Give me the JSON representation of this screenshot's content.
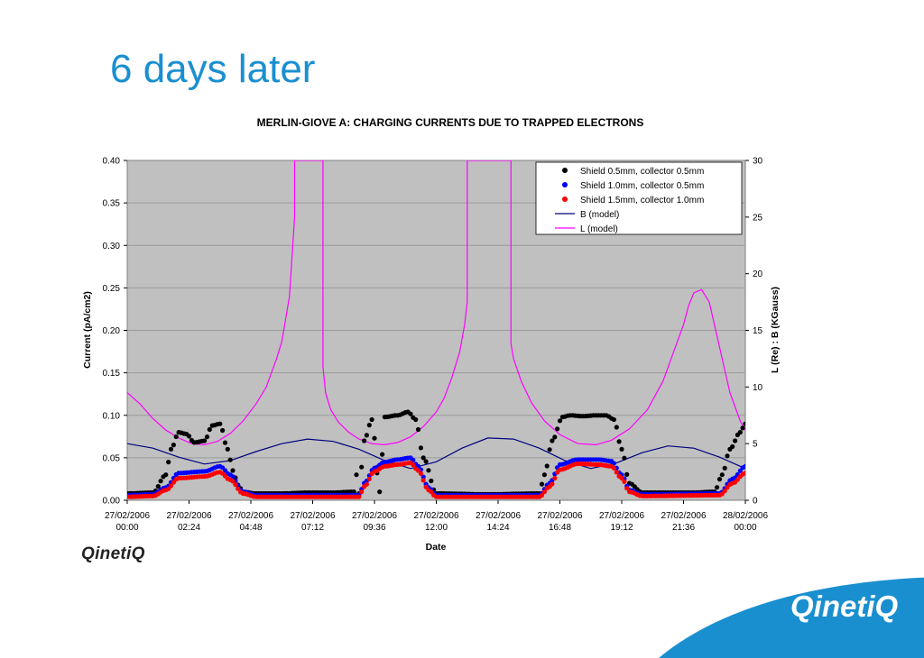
{
  "slide": {
    "title": "6 days later",
    "logo_small": "QinetiQ",
    "logo_big": "QinetiQ"
  },
  "colors": {
    "title": "#1a8fd0",
    "plot_bg": "#c0c0c0",
    "s1": "#000000",
    "s2": "#0000ff",
    "s3": "#ff0000",
    "b": "#000080",
    "l": "#ff00ff",
    "corner": "#1a8fd0"
  },
  "chart_data": {
    "type": "scatter",
    "title": "MERLIN-GIOVE A: CHARGING CURRENTS DUE TO TRAPPED ELECTRONS",
    "xlabel": "Date",
    "ylabel": "Current (pA/cm2)",
    "y2label": "L (Re)   :  B (KGauss)",
    "xlim_hours": [
      0,
      24
    ],
    "ylim": [
      0,
      0.4
    ],
    "y2lim": [
      0,
      30
    ],
    "grid": true,
    "legend": "top-right",
    "yticks": [
      "0.00",
      "0.05",
      "0.10",
      "0.15",
      "0.20",
      "0.25",
      "0.30",
      "0.35",
      "0.40"
    ],
    "y2ticks": [
      "0",
      "5",
      "10",
      "15",
      "20",
      "25",
      "30"
    ],
    "xticks": [
      {
        "date": "27/02/2006",
        "time": "00:00"
      },
      {
        "date": "27/02/2006",
        "time": "02:24"
      },
      {
        "date": "27/02/2006",
        "time": "04:48"
      },
      {
        "date": "27/02/2006",
        "time": "07:12"
      },
      {
        "date": "27/02/2006",
        "time": "09:36"
      },
      {
        "date": "27/02/2006",
        "time": "12:00"
      },
      {
        "date": "27/02/2006",
        "time": "14:24"
      },
      {
        "date": "27/02/2006",
        "time": "16:48"
      },
      {
        "date": "27/02/2006",
        "time": "19:12"
      },
      {
        "date": "27/02/2006",
        "time": "21:36"
      },
      {
        "date": "28/02/2006",
        "time": "00:00"
      }
    ],
    "series": [
      {
        "name": "Shield 0.5mm, collector 0.5mm",
        "kind": "markers",
        "axis": "left",
        "hours": [
          0,
          1.0,
          1.5,
          1.7,
          2.0,
          2.3,
          2.6,
          3.0,
          3.3,
          3.6,
          3.9,
          4.1,
          4.3,
          4.5,
          5,
          6,
          7,
          8,
          9,
          9.8,
          8.8,
          8.9,
          9.2,
          9.5,
          10.0,
          10.5,
          10.9,
          11.2,
          11.5,
          12,
          14,
          16,
          16.0,
          16.2,
          16.5,
          16.9,
          17.2,
          17.7,
          18.2,
          18.6,
          18.9,
          19.2,
          19.5,
          20,
          22,
          22.8,
          23.1,
          23.4,
          23.8,
          24.0
        ],
        "values": [
          0.008,
          0.009,
          0.03,
          0.06,
          0.08,
          0.078,
          0.068,
          0.07,
          0.088,
          0.09,
          0.06,
          0.035,
          0.018,
          0.01,
          0.008,
          0.008,
          0.009,
          0.009,
          0.008,
          0.01,
          0.01,
          0.03,
          0.07,
          0.095,
          0.098,
          0.1,
          0.104,
          0.095,
          0.05,
          0.008,
          0.007,
          0.008,
          0.008,
          0.03,
          0.07,
          0.098,
          0.1,
          0.099,
          0.1,
          0.1,
          0.095,
          0.06,
          0.02,
          0.009,
          0.009,
          0.01,
          0.03,
          0.06,
          0.08,
          0.09
        ]
      },
      {
        "name": "Shield 1.0mm, collector 0.5mm",
        "kind": "markers",
        "axis": "left",
        "hours": [
          0,
          1.0,
          1.5,
          2.0,
          3.0,
          3.6,
          4.0,
          4.5,
          5,
          9,
          9.2,
          9.6,
          10.0,
          10.5,
          11.0,
          11.3,
          11.7,
          12,
          16,
          16.4,
          16.8,
          17.5,
          18.3,
          18.8,
          19.2,
          19.5,
          20,
          23,
          23.5,
          24.0
        ],
        "values": [
          0.006,
          0.007,
          0.015,
          0.032,
          0.034,
          0.04,
          0.03,
          0.01,
          0.006,
          0.006,
          0.02,
          0.038,
          0.045,
          0.048,
          0.05,
          0.04,
          0.015,
          0.006,
          0.006,
          0.02,
          0.042,
          0.048,
          0.048,
          0.046,
          0.03,
          0.012,
          0.007,
          0.008,
          0.025,
          0.04
        ]
      },
      {
        "name": "Shield 1.5mm, collector 1.0mm",
        "kind": "markers",
        "axis": "left",
        "hours": [
          0,
          1.0,
          1.5,
          2.0,
          3.0,
          3.6,
          4.0,
          4.5,
          5,
          9,
          9.2,
          9.6,
          10.0,
          10.5,
          11.0,
          11.3,
          11.7,
          12,
          16,
          16.4,
          16.8,
          17.5,
          18.3,
          18.8,
          19.2,
          19.5,
          20,
          23,
          23.5,
          24.0
        ],
        "values": [
          0.004,
          0.005,
          0.012,
          0.026,
          0.028,
          0.033,
          0.024,
          0.008,
          0.004,
          0.004,
          0.016,
          0.034,
          0.04,
          0.042,
          0.044,
          0.035,
          0.012,
          0.004,
          0.004,
          0.016,
          0.036,
          0.043,
          0.042,
          0.04,
          0.026,
          0.01,
          0.005,
          0.006,
          0.02,
          0.032
        ]
      },
      {
        "name": "B (model)",
        "kind": "line",
        "axis": "right",
        "hours": [
          0,
          1,
          2,
          3,
          4,
          5,
          6,
          7,
          8,
          9,
          10,
          11,
          12,
          13,
          14,
          15,
          16,
          17,
          18,
          19,
          20,
          21,
          22,
          23,
          24
        ],
        "values": [
          5.0,
          4.6,
          3.8,
          3.2,
          3.5,
          4.3,
          5.0,
          5.4,
          5.2,
          4.5,
          3.5,
          2.8,
          3.4,
          4.6,
          5.5,
          5.4,
          4.6,
          3.5,
          2.8,
          3.3,
          4.2,
          4.8,
          4.6,
          3.8,
          2.8
        ]
      },
      {
        "name": "L (model)",
        "kind": "line",
        "axis": "right",
        "hours": [
          0,
          0.5,
          1.0,
          1.5,
          2.0,
          2.5,
          3.0,
          3.5,
          4.0,
          4.5,
          5.0,
          5.4,
          5.8,
          6.0,
          6.3,
          6.5,
          6.5,
          7.6,
          7.6,
          7.7,
          7.9,
          8.2,
          8.6,
          9.0,
          9.5,
          10.0,
          10.5,
          11.0,
          11.5,
          12.0,
          12.3,
          12.6,
          12.9,
          13.1,
          13.2,
          13.2,
          14.9,
          14.9,
          15.0,
          15.3,
          15.7,
          16.2,
          16.8,
          17.5,
          18.2,
          18.8,
          19.5,
          20.2,
          20.8,
          21.2,
          21.6,
          21.8,
          22.0,
          22.3,
          22.6,
          23.0,
          23.4,
          23.8,
          24.0
        ],
        "values": [
          9.5,
          8.5,
          7.2,
          6.2,
          5.5,
          5.0,
          4.9,
          5.2,
          5.9,
          7.0,
          8.5,
          10.0,
          12.5,
          14.0,
          18.0,
          25.0,
          30.0,
          30.0,
          11.8,
          9.5,
          8.0,
          6.9,
          6.0,
          5.4,
          5.0,
          4.9,
          5.1,
          5.6,
          6.5,
          7.8,
          9.0,
          10.8,
          13.0,
          15.5,
          17.5,
          30.0,
          30.0,
          13.8,
          12.5,
          10.5,
          8.6,
          7.0,
          5.8,
          5.0,
          4.9,
          5.3,
          6.3,
          8.0,
          10.5,
          13.0,
          15.5,
          17.2,
          18.3,
          18.6,
          17.5,
          13.5,
          9.5,
          7.0,
          6.2
        ]
      }
    ]
  }
}
